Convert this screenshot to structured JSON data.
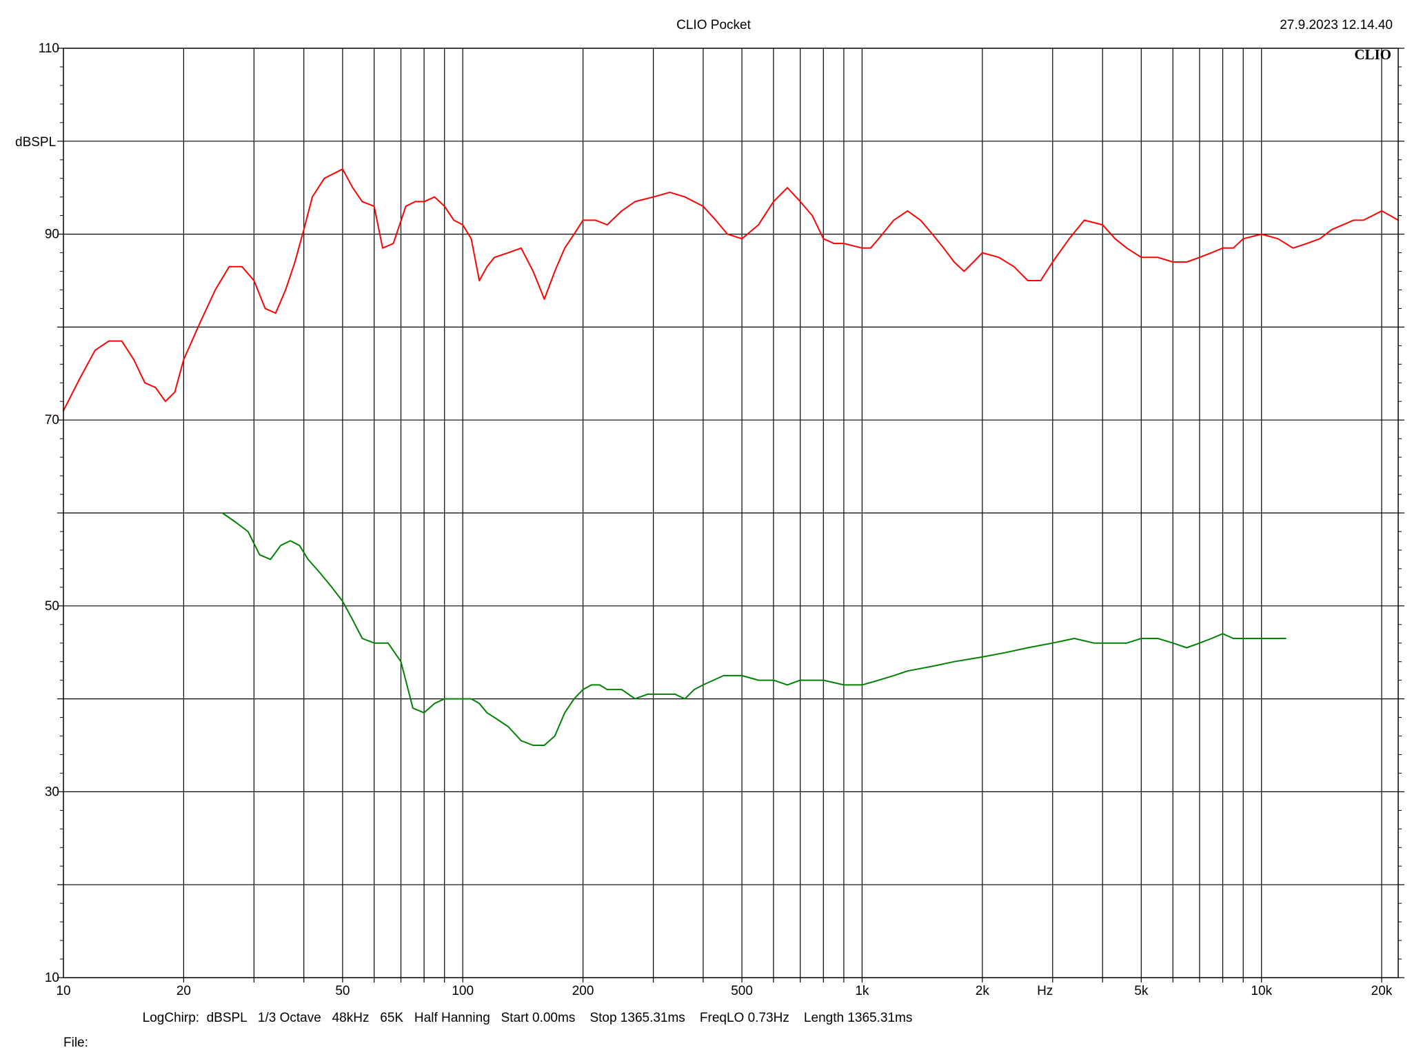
{
  "header": {
    "title": "CLIO Pocket",
    "timestamp": "27.9.2023 12.14.40",
    "logo": "CLIO"
  },
  "footer": {
    "params": "LogChirp:  dBSPL   1/3 Octave   48kHz   65K   Half Hanning   Start 0.00ms    Stop 1365.31ms    FreqLO 0.73Hz    Length 1365.31ms",
    "file_label": "File:"
  },
  "chart_data": {
    "type": "line",
    "title": "CLIO Pocket",
    "ylabel": "dBSPL",
    "xlabel": "Hz",
    "x_scale": "log",
    "xlim": [
      10,
      22000
    ],
    "ylim": [
      10,
      110
    ],
    "grid": true,
    "x_major_ticks": [
      {
        "value": 10,
        "label": "10"
      },
      {
        "value": 20,
        "label": "20"
      },
      {
        "value": 50,
        "label": "50"
      },
      {
        "value": 100,
        "label": "100"
      },
      {
        "value": 200,
        "label": "200"
      },
      {
        "value": 500,
        "label": "500"
      },
      {
        "value": 1000,
        "label": "1k"
      },
      {
        "value": 2000,
        "label": "2k"
      },
      {
        "value": 5000,
        "label": "5k"
      },
      {
        "value": 10000,
        "label": "10k"
      },
      {
        "value": 20000,
        "label": "20k"
      }
    ],
    "x_unit_label": {
      "value": 2870,
      "label": "Hz"
    },
    "y_ticks": [
      {
        "value": 110,
        "label": "110"
      },
      {
        "value": 90,
        "label": "90"
      },
      {
        "value": 70,
        "label": "70"
      },
      {
        "value": 50,
        "label": "50"
      },
      {
        "value": 30,
        "label": "30"
      },
      {
        "value": 10,
        "label": "10"
      }
    ],
    "series": [
      {
        "color": "#ff0000",
        "x": [
          10,
          11,
          12,
          13,
          14,
          15,
          16,
          17,
          18,
          19,
          20,
          22,
          24,
          26,
          28,
          30,
          32,
          34,
          36,
          38,
          40,
          42,
          45,
          50,
          53,
          56,
          60,
          63,
          67,
          72,
          76,
          80,
          85,
          90,
          95,
          100,
          105,
          110,
          115,
          120,
          130,
          140,
          150,
          155,
          160,
          170,
          180,
          190,
          200,
          215,
          230,
          250,
          270,
          300,
          330,
          360,
          400,
          430,
          460,
          500,
          550,
          600,
          650,
          700,
          750,
          800,
          850,
          900,
          1000,
          1050,
          1100,
          1200,
          1300,
          1400,
          1500,
          1600,
          1700,
          1800,
          1900,
          2000,
          2200,
          2400,
          2600,
          2800,
          3000,
          3300,
          3600,
          4000,
          4300,
          4600,
          5000,
          5500,
          6000,
          6500,
          7000,
          7500,
          8000,
          8500,
          9000,
          10000,
          11000,
          12000,
          13000,
          14000,
          15000,
          16000,
          17000,
          18000,
          19000,
          20000,
          21000,
          22000
        ],
        "y": [
          71,
          74.5,
          77.5,
          78.5,
          78.5,
          76.5,
          74,
          73.5,
          72,
          73,
          76.5,
          80.5,
          84,
          86.5,
          86.5,
          85,
          82,
          81.5,
          84,
          87,
          90.5,
          94,
          96,
          97,
          95,
          93.5,
          93,
          88.5,
          89,
          93,
          93.5,
          93.5,
          94,
          93,
          91.5,
          91,
          89.5,
          85,
          86.5,
          87.5,
          88,
          88.5,
          86,
          84.5,
          83,
          86,
          88.5,
          90,
          91.5,
          91.5,
          91,
          92.5,
          93.5,
          94,
          94.5,
          94,
          93,
          91.5,
          90,
          89.5,
          91,
          93.5,
          95,
          93.5,
          92,
          89.5,
          89,
          89,
          88.5,
          88.5,
          89.5,
          91.5,
          92.5,
          91.5,
          90,
          88.5,
          87,
          86,
          87,
          88,
          87.5,
          86.5,
          85,
          85,
          87,
          89.5,
          91.5,
          91,
          89.5,
          88.5,
          87.5,
          87.5,
          87,
          87,
          87.5,
          88,
          88.5,
          88.5,
          89.5,
          90,
          89.5,
          88.5,
          89,
          89.5,
          90.5,
          91,
          91.5,
          91.5,
          92,
          92.5,
          92,
          91.5
        ]
      },
      {
        "color": "#008000",
        "x": [
          25,
          27,
          29,
          31,
          33,
          35,
          37,
          39,
          41,
          44,
          47,
          50,
          53,
          56,
          60,
          65,
          70,
          75,
          80,
          85,
          90,
          95,
          100,
          105,
          110,
          115,
          120,
          130,
          140,
          150,
          160,
          170,
          180,
          190,
          200,
          210,
          220,
          230,
          250,
          270,
          290,
          300,
          320,
          340,
          360,
          380,
          400,
          450,
          500,
          550,
          600,
          650,
          700,
          750,
          800,
          900,
          1000,
          1100,
          1200,
          1300,
          1500,
          1700,
          2000,
          2300,
          2600,
          3000,
          3400,
          3800,
          4200,
          4600,
          5000,
          5500,
          6000,
          6500,
          7000,
          7500,
          8000,
          8500,
          9000,
          9500,
          10000,
          11000,
          11500
        ],
        "y": [
          60,
          59,
          58,
          55.5,
          55,
          56.5,
          57,
          56.5,
          55,
          53.5,
          52,
          50.5,
          48.5,
          46.5,
          46,
          46,
          44,
          39,
          38.5,
          39.5,
          40,
          40,
          40,
          40,
          39.5,
          38.5,
          38,
          37,
          35.5,
          35,
          35,
          36,
          38.5,
          40,
          41,
          41.5,
          41.5,
          41,
          41,
          40,
          40.5,
          40.5,
          40.5,
          40.5,
          40,
          41,
          41.5,
          42.5,
          42.5,
          42,
          42,
          41.5,
          42,
          42,
          42,
          41.5,
          41.5,
          42,
          42.5,
          43,
          43.5,
          44,
          44.5,
          45,
          45.5,
          46,
          46.5,
          46,
          46,
          46,
          46.5,
          46.5,
          46,
          45.5,
          46,
          46.5,
          47,
          46.5,
          46.5,
          46.5,
          46.5,
          46.5,
          46.5
        ]
      }
    ]
  }
}
